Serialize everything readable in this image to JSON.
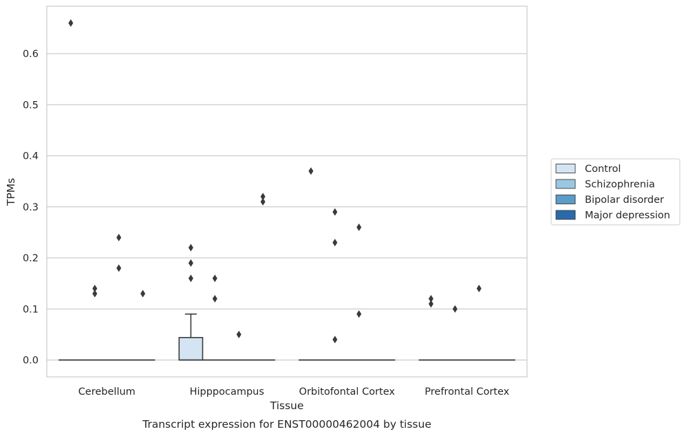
{
  "chart_data": {
    "type": "box",
    "title": "",
    "caption": "Transcript expression for ENST00000462004 by tissue",
    "xlabel": "Tissue",
    "ylabel": "TPMs",
    "ylim": [
      -0.033,
      0.693
    ],
    "yticks": [
      0.0,
      0.1,
      0.2,
      0.3,
      0.4,
      0.5,
      0.6
    ],
    "ytick_labels": [
      "0.0",
      "0.1",
      "0.2",
      "0.3",
      "0.4",
      "0.5",
      "0.6"
    ],
    "grid": true,
    "legend_position": "right",
    "categories": [
      "Cerebellum",
      "Hipppocampus",
      "Orbitofontal Cortex",
      "Prefrontal Cortex"
    ],
    "series": [
      {
        "name": "Control",
        "color": "#d4e4f3",
        "boxes": [
          {
            "q1": 0,
            "median": 0,
            "q3": 0,
            "whisker_low": 0,
            "whisker_high": 0,
            "outliers": [
              0.66
            ]
          },
          {
            "q1": 0,
            "median": 0,
            "q3": 0.044,
            "whisker_low": 0,
            "whisker_high": 0.09,
            "outliers": [
              0.22,
              0.19,
              0.16
            ]
          },
          {
            "q1": 0,
            "median": 0,
            "q3": 0,
            "whisker_low": 0,
            "whisker_high": 0,
            "outliers": [
              0.37
            ]
          },
          {
            "q1": 0,
            "median": 0,
            "q3": 0,
            "whisker_low": 0,
            "whisker_high": 0,
            "outliers": [
              0.12,
              0.11
            ]
          }
        ]
      },
      {
        "name": "Schizophrenia",
        "color": "#9ac8e0",
        "boxes": [
          {
            "q1": 0,
            "median": 0,
            "q3": 0,
            "whisker_low": 0,
            "whisker_high": 0,
            "outliers": [
              0.14,
              0.13
            ]
          },
          {
            "q1": 0,
            "median": 0,
            "q3": 0,
            "whisker_low": 0,
            "whisker_high": 0,
            "outliers": [
              0.16,
              0.12
            ]
          },
          {
            "q1": 0,
            "median": 0,
            "q3": 0,
            "whisker_low": 0,
            "whisker_high": 0,
            "outliers": [
              0.29,
              0.23,
              0.04
            ]
          },
          {
            "q1": 0,
            "median": 0,
            "q3": 0,
            "whisker_low": 0,
            "whisker_high": 0,
            "outliers": [
              0.1
            ]
          }
        ]
      },
      {
        "name": "Bipolar disorder",
        "color": "#5b9cc8",
        "boxes": [
          {
            "q1": 0,
            "median": 0,
            "q3": 0,
            "whisker_low": 0,
            "whisker_high": 0,
            "outliers": [
              0.24,
              0.18
            ]
          },
          {
            "q1": 0,
            "median": 0,
            "q3": 0,
            "whisker_low": 0,
            "whisker_high": 0,
            "outliers": [
              0.05
            ]
          },
          {
            "q1": 0,
            "median": 0,
            "q3": 0,
            "whisker_low": 0,
            "whisker_high": 0,
            "outliers": [
              0.26,
              0.09
            ]
          },
          {
            "q1": 0,
            "median": 0,
            "q3": 0,
            "whisker_low": 0,
            "whisker_high": 0,
            "outliers": [
              0.14
            ]
          }
        ]
      },
      {
        "name": "Major depression",
        "color": "#2a6aab",
        "boxes": [
          {
            "q1": 0,
            "median": 0,
            "q3": 0,
            "whisker_low": 0,
            "whisker_high": 0,
            "outliers": [
              0.13
            ]
          },
          {
            "q1": 0,
            "median": 0,
            "q3": 0,
            "whisker_low": 0,
            "whisker_high": 0,
            "outliers": [
              0.32,
              0.31
            ]
          },
          {
            "q1": 0,
            "median": 0,
            "q3": 0,
            "whisker_low": 0,
            "whisker_high": 0,
            "outliers": []
          },
          {
            "q1": 0,
            "median": 0,
            "q3": 0,
            "whisker_low": 0,
            "whisker_high": 0,
            "outliers": []
          }
        ]
      }
    ]
  }
}
